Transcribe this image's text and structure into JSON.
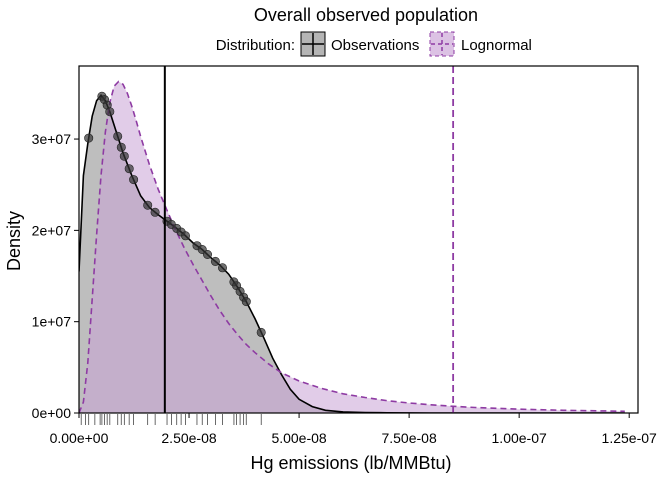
{
  "chart_data": {
    "type": "area",
    "title": "Overall observed population",
    "xlabel": "Hg emissions (lb/MMBtu)",
    "ylabel": "Density",
    "xlim": [
      0,
      1.27e-07
    ],
    "ylim": [
      0,
      38000000.0
    ],
    "x_ticks": [
      0,
      2.5e-08,
      5e-08,
      7.5e-08,
      1e-07,
      1.25e-07
    ],
    "x_tick_labels": [
      "0.00e+00",
      "2.50e-08",
      "5.00e-08",
      "7.50e-08",
      "1.00e-07",
      "1.25e-07"
    ],
    "y_ticks": [
      0,
      10000000.0,
      20000000.0,
      30000000.0
    ],
    "y_tick_labels": [
      "0e+00",
      "1e+07",
      "2e+07",
      "3e+07"
    ],
    "legend": {
      "title": "Distribution:",
      "placement": "top",
      "entries": [
        "Observations",
        "Lognormal"
      ]
    },
    "colors": {
      "observations_fill": "#9b9b9b",
      "observations_line": "#000000",
      "lognormal_fill": "#c9a3d6",
      "lognormal_line": "#8e3ba3"
    },
    "series": [
      {
        "name": "Observations",
        "style": "solid",
        "x": [
          0,
          1e-09,
          2e-09,
          3e-09,
          4e-09,
          5e-09,
          6e-09,
          7e-09,
          8e-09,
          9e-09,
          1e-08,
          1.2e-08,
          1.4e-08,
          1.6e-08,
          1.8e-08,
          2e-08,
          2.2e-08,
          2.4e-08,
          2.6e-08,
          2.8e-08,
          3e-08,
          3.2e-08,
          3.4e-08,
          3.6e-08,
          3.8e-08,
          4e-08,
          4.2e-08,
          4.4e-08,
          4.6e-08,
          4.8e-08,
          5e-08,
          5.3e-08,
          5.6e-08,
          6e-08,
          6.5e-08,
          7e-08,
          7.5e-08,
          8e-08,
          9e-08,
          1e-07,
          1.1e-07,
          1.24e-07
        ],
        "y": [
          15500000.0,
          26000000.0,
          29500000.0,
          32500000.0,
          34200000.0,
          34800000.0,
          34200000.0,
          33000000.0,
          31500000.0,
          30000000.0,
          28500000.0,
          26000000.0,
          23800000.0,
          22500000.0,
          21700000.0,
          21000000.0,
          20300000.0,
          19500000.0,
          18600000.0,
          17900000.0,
          17000000.0,
          16200000.0,
          15200000.0,
          13800000.0,
          12200000.0,
          10300000.0,
          8200000.0,
          6000000.0,
          4200000.0,
          2600000.0,
          1500000.0,
          700000.0,
          300000.0,
          120000.0,
          50000.0,
          20000.0,
          10000.0,
          5000.0,
          2000.0,
          1000.0,
          500.0,
          0
        ]
      },
      {
        "name": "Lognormal",
        "style": "dashed",
        "x": [
          0,
          1e-09,
          2e-09,
          3e-09,
          4e-09,
          5e-09,
          6e-09,
          7e-09,
          8e-09,
          9e-09,
          1e-08,
          1.1e-08,
          1.2e-08,
          1.3e-08,
          1.4e-08,
          1.6e-08,
          1.8e-08,
          2e-08,
          2.2e-08,
          2.4e-08,
          2.6e-08,
          2.8e-08,
          3e-08,
          3.2e-08,
          3.4e-08,
          3.6e-08,
          3.8e-08,
          4e-08,
          4.3e-08,
          4.6e-08,
          5e-08,
          5.5e-08,
          6e-08,
          6.5e-08,
          7e-08,
          7.5e-08,
          8e-08,
          8.5e-08,
          9e-08,
          1e-07,
          1.1e-07,
          1.2e-07,
          1.24e-07
        ],
        "y": [
          0,
          1200000.0,
          5500000.0,
          12500000.0,
          19500000.0,
          26000000.0,
          30800000.0,
          34000000.0,
          35800000.0,
          36300000.0,
          36000000.0,
          35000000.0,
          33600000.0,
          32000000.0,
          30300000.0,
          27200000.0,
          24500000.0,
          22200000.0,
          20000000.0,
          18000000.0,
          16200000.0,
          14500000.0,
          12800000.0,
          11200000.0,
          9800000.0,
          8600000.0,
          7500000.0,
          6600000.0,
          5400000.0,
          4400000.0,
          3500000.0,
          2700000.0,
          2100000.0,
          1700000.0,
          1350000.0,
          1100000.0,
          900000.0,
          730000.0,
          600000.0,
          420000.0,
          300000.0,
          220000.0,
          190000.0
        ]
      }
    ],
    "observation_points_x": [
      2.2e-09,
      5.2e-09,
      5.8e-09,
      6.4e-09,
      7e-09,
      8.8e-09,
      9.6e-09,
      1.03e-08,
      1.14e-08,
      1.24e-08,
      1.56e-08,
      1.73e-08,
      2e-08,
      2.1e-08,
      2.22e-08,
      2.32e-08,
      2.42e-08,
      2.68e-08,
      2.8e-08,
      2.92e-08,
      3.1e-08,
      3.26e-08,
      3.52e-08,
      3.58e-08,
      3.66e-08,
      3.74e-08,
      3.8e-08,
      4.14e-08
    ],
    "rug_x": [
      5e-10,
      1.5e-09,
      2.2e-09,
      3.6e-09,
      4.8e-09,
      5.2e-09,
      5.8e-09,
      6.4e-09,
      7e-09,
      8.8e-09,
      9.6e-09,
      1.03e-08,
      1.14e-08,
      1.24e-08,
      1.56e-08,
      1.73e-08,
      2e-08,
      2.1e-08,
      2.22e-08,
      2.32e-08,
      2.42e-08,
      2.68e-08,
      2.8e-08,
      2.92e-08,
      3.1e-08,
      3.26e-08,
      3.52e-08,
      3.58e-08,
      3.66e-08,
      3.74e-08,
      3.8e-08,
      4.14e-08
    ],
    "vlines": [
      {
        "x": 1.95e-08,
        "style": "solid",
        "color": "#000000"
      },
      {
        "x": 8.5e-08,
        "style": "dashed",
        "color": "#8e3ba3"
      }
    ]
  }
}
